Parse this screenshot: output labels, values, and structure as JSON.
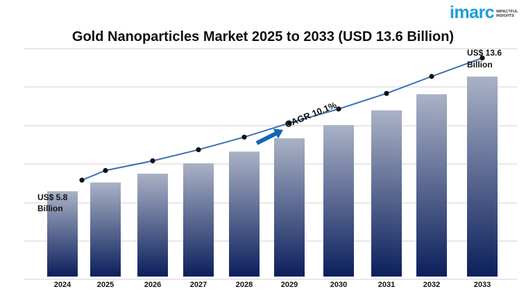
{
  "title": "Gold Nanoparticles Market 2025 to 2033 (USD 13.6 Billion)",
  "logo": {
    "word": "imarc",
    "tagline": "IMPACTFUL INSIGHTS"
  },
  "chart_data": {
    "type": "bar",
    "title": "Gold Nanoparticles Market 2025 to 2033 (USD 13.6 Billion)",
    "xlabel": "",
    "ylabel": "",
    "unit": "USD Billion",
    "categories": [
      "2024",
      "2025",
      "2026",
      "2027",
      "2028",
      "2029",
      "2030",
      "2031",
      "2032",
      "2033"
    ],
    "values": [
      5.8,
      6.4,
      7.0,
      7.7,
      8.5,
      9.4,
      10.3,
      11.3,
      12.4,
      13.6
    ],
    "ylim": [
      0,
      15.5
    ],
    "grid": true,
    "trend_line": true,
    "annotations": {
      "start_line1": "US$ 5.8",
      "start_line2": "Billion",
      "end_line1": "US$ 13.6",
      "end_line2": "Billion",
      "cagr": "CAGR 10.1%"
    },
    "colors": {
      "bar_top": "#aab2c6",
      "bar_bottom": "#0b1f5c",
      "line": "#3b6fb4",
      "marker": "#111111",
      "arrow": "#1266b3",
      "grid": "#d0d0d0"
    }
  }
}
